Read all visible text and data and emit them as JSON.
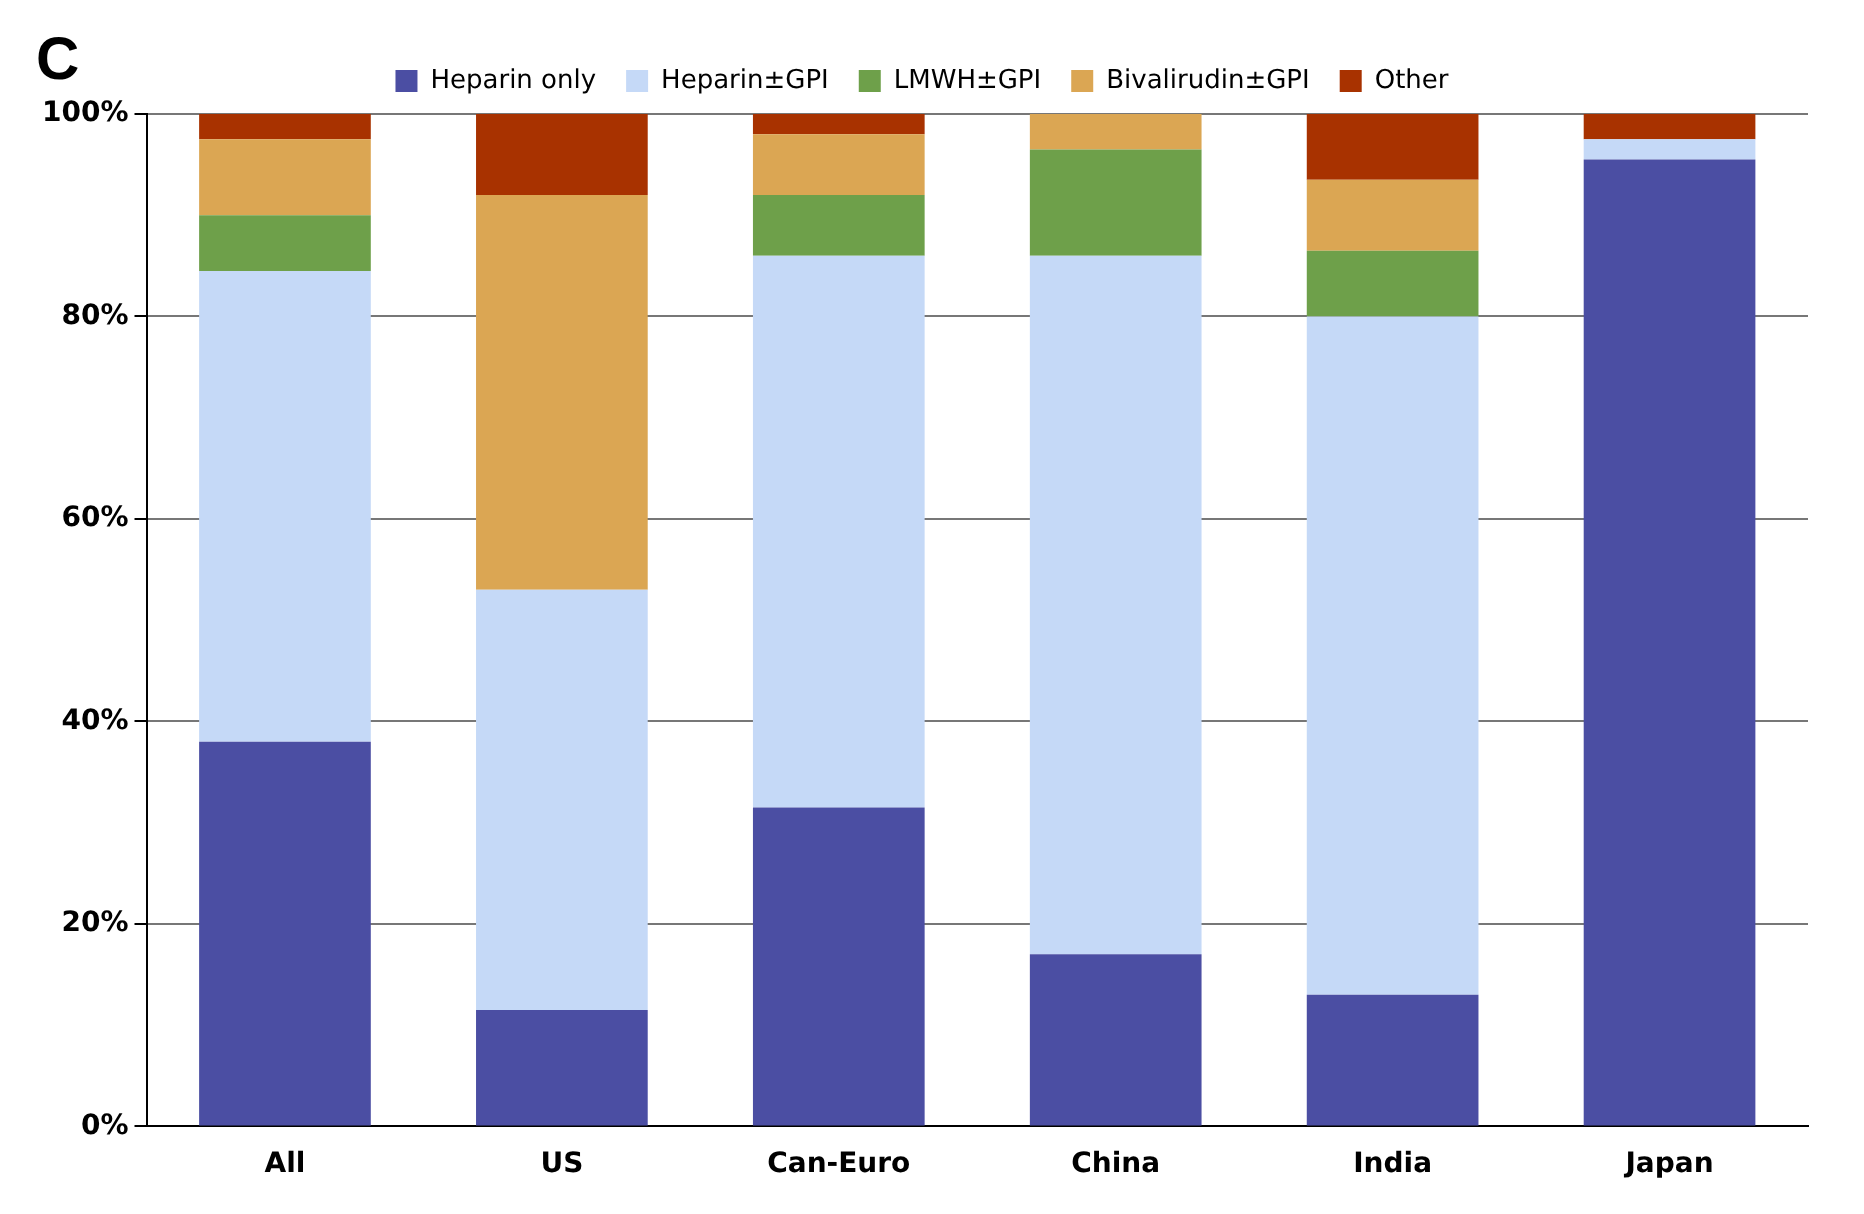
{
  "chart_data": {
    "type": "bar",
    "title": "C",
    "stacked": true,
    "legend": "top",
    "grid": "y",
    "categories": [
      "All",
      "US",
      "Can-Euro",
      "China",
      "India",
      "Japan"
    ],
    "ylim": [
      0,
      100
    ],
    "yticks": [
      {
        "value": 0,
        "label": "0%"
      },
      {
        "value": 20,
        "label": "20%"
      },
      {
        "value": 40,
        "label": "40%"
      },
      {
        "value": 60,
        "label": "60%"
      },
      {
        "value": 80,
        "label": "80%"
      },
      {
        "value": 100,
        "label": "100%"
      }
    ],
    "series": [
      {
        "name": "Heparin only",
        "color": "#4b4ea3",
        "values": [
          38,
          11.5,
          31.5,
          17,
          13,
          95.5
        ]
      },
      {
        "name": "Heparin±GPI",
        "color": "#c5d9f7",
        "values": [
          46.5,
          41.5,
          54.5,
          69,
          67,
          2
        ]
      },
      {
        "name": "LMWH±GPI",
        "color": "#6ea04a",
        "values": [
          5.5,
          0,
          6,
          10.5,
          6.5,
          0
        ]
      },
      {
        "name": "Bivalirudin±GPI",
        "color": "#dba653",
        "values": [
          7.5,
          39,
          6,
          3.5,
          7,
          0
        ]
      },
      {
        "name": "Other",
        "color": "#a83200",
        "values": [
          2.5,
          8,
          2,
          0,
          6.5,
          2.5
        ]
      }
    ]
  }
}
